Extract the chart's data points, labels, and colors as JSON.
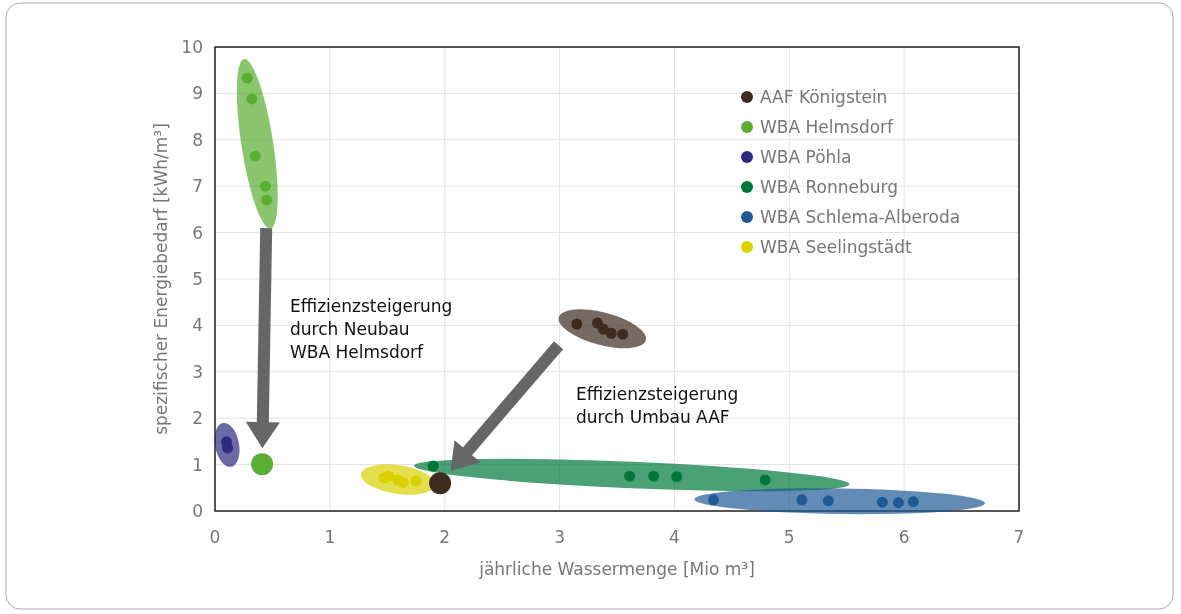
{
  "chart_data": {
    "type": "scatter",
    "xlabel": "jährliche Wassermenge [Mio m³]",
    "ylabel": "spezifischer Energiebedarf [kWh/m³]",
    "xlim": [
      0,
      7
    ],
    "xticks": [
      0,
      1,
      2,
      3,
      4,
      5,
      6,
      7
    ],
    "ylim": [
      0,
      10
    ],
    "yticks": [
      0,
      1,
      2,
      3,
      4,
      5,
      6,
      7,
      8,
      9,
      10
    ],
    "grid": true,
    "legend": "top right",
    "marker": "circle",
    "series": [
      {
        "name": "AAF Königstein",
        "color": "#3d2b1f",
        "x": [
          3.15,
          3.33,
          3.38,
          3.45,
          3.55
        ],
        "values": [
          4.03,
          4.05,
          3.92,
          3.83,
          3.81
        ]
      },
      {
        "name": "WBA Helmsdorf",
        "color": "#5aae32",
        "x": [
          0.28,
          0.32,
          0.35,
          0.44,
          0.45
        ],
        "values": [
          9.33,
          8.88,
          7.65,
          7.0,
          6.7
        ]
      },
      {
        "name": "WBA Pöhla",
        "color": "#2e2a7f",
        "x": [
          0.1,
          0.11
        ],
        "values": [
          1.49,
          1.36
        ]
      },
      {
        "name": "WBA Ronneburg",
        "color": "#00773a",
        "x": [
          1.9,
          3.61,
          3.82,
          4.02,
          4.79
        ],
        "values": [
          0.97,
          0.75,
          0.75,
          0.74,
          0.67
        ]
      },
      {
        "name": "WBA Schlema-Alberoda",
        "color": "#1f5a96",
        "x": [
          4.34,
          5.11,
          5.34,
          5.81,
          5.95,
          6.08
        ],
        "values": [
          0.24,
          0.24,
          0.22,
          0.19,
          0.18,
          0.2
        ]
      },
      {
        "name": "WBA Seelingstädt",
        "color": "#d9d200",
        "x": [
          1.47,
          1.51,
          1.59,
          1.64,
          1.75
        ],
        "values": [
          0.71,
          0.75,
          0.67,
          0.61,
          0.65
        ]
      },
      {
        "color": "#5aae32",
        "x": [
          0.41
        ],
        "values": [
          1.01
        ]
      },
      {
        "color": "#3d2b1f",
        "x": [
          1.96
        ],
        "values": [
          0.6
        ]
      }
    ],
    "annotations": [
      "Effizienzsteigerung\ndurch Neubau\nWBA Helmsdorf",
      "Effizienzsteigerung\ndurch Umbau AAF"
    ]
  }
}
